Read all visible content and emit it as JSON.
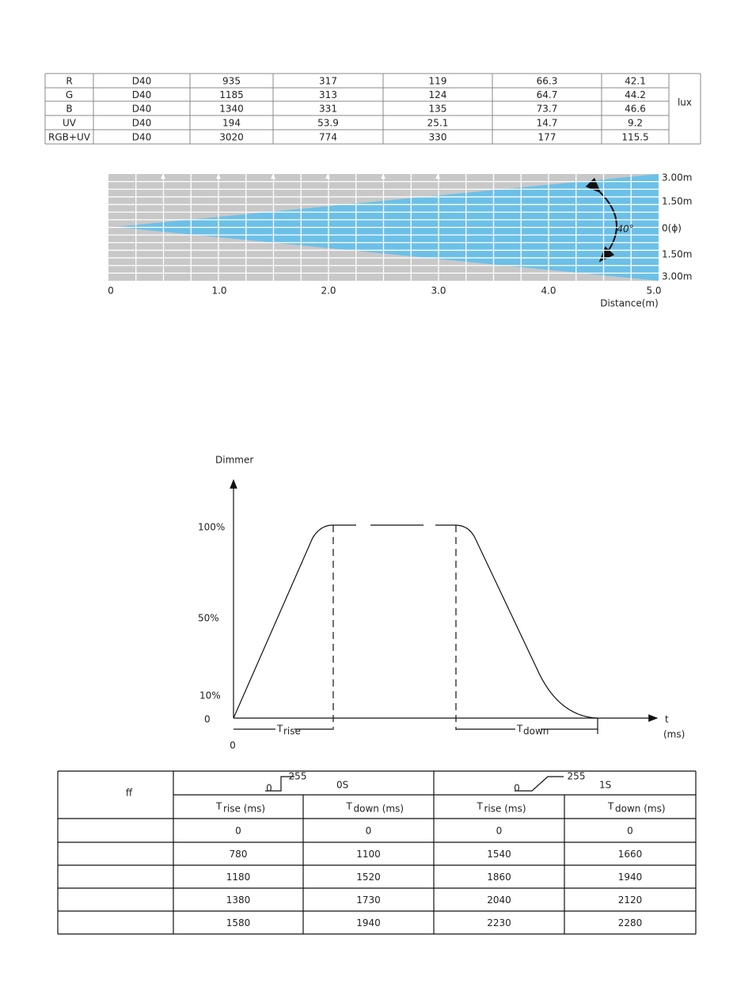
{
  "performance_table": {
    "rows": [
      [
        "R",
        "D40",
        "935",
        "317",
        "119",
        "66.3",
        "42.1"
      ],
      [
        "G",
        "D40",
        "1185",
        "313",
        "124",
        "64.7",
        "44.2"
      ],
      [
        "B",
        "D40",
        "1340",
        "331",
        "135",
        "73.7",
        "46.6"
      ],
      [
        "UV",
        "D40",
        "194",
        "53.9",
        "25.1",
        "14.7",
        "9.2"
      ],
      [
        "RGB+UV",
        "D40",
        "3020",
        "774",
        "330",
        "177",
        "115.5"
      ]
    ],
    "unit": "lux"
  },
  "beam_diagram": {
    "distance_labels": [
      "3.00m",
      "1.50m",
      "0(ϕ)",
      "1.50m",
      "3.00m"
    ],
    "x_labels": [
      "0",
      "1.0",
      "2.0",
      "3.0",
      "4.0",
      "5.0"
    ],
    "x_title": "Distance(m)",
    "angle": "40°"
  },
  "dimmer_curve": {
    "y_title": "Dimmer",
    "y_labels": [
      "100%",
      "50%",
      "10%",
      "0"
    ],
    "origin": "0",
    "x_title": "t",
    "x_unit": "(ms)",
    "rise": {
      "symbol": "T",
      "sub": "rise"
    },
    "down": {
      "symbol": "T",
      "sub": "down"
    }
  },
  "timing_table": {
    "corner": "ff",
    "groups": [
      {
        "low": "0",
        "high": "255",
        "label": "0S"
      },
      {
        "low": "0",
        "high": "255",
        "label": "1S"
      }
    ],
    "subheaders": [
      {
        "symbol": "T",
        "sub": "rise (ms)"
      },
      {
        "symbol": "T",
        "sub": "down (ms)"
      },
      {
        "symbol": "T",
        "sub": "rise (ms)"
      },
      {
        "symbol": "T",
        "sub": "down (ms)"
      }
    ],
    "rows": [
      [
        "0",
        "0",
        "0",
        "0"
      ],
      [
        "780",
        "1100",
        "1540",
        "1660"
      ],
      [
        "1180",
        "1520",
        "1860",
        "1940"
      ],
      [
        "1380",
        "1730",
        "2040",
        "2120"
      ],
      [
        "1580",
        "1940",
        "2230",
        "2280"
      ]
    ]
  }
}
